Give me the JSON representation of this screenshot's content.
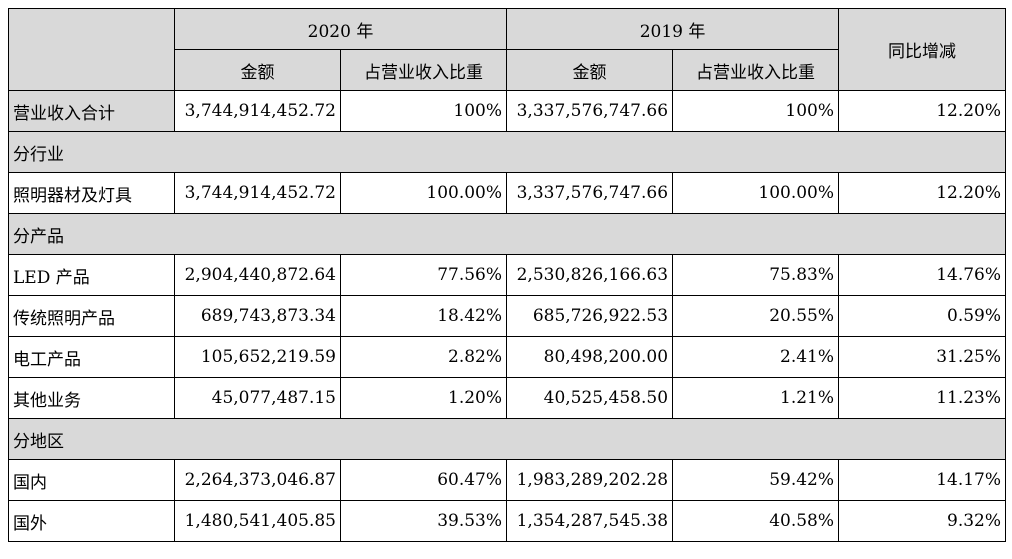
{
  "header": {
    "year_2020": "2020 年",
    "year_2019": "2019 年",
    "yoy_change": "同比增减",
    "amount_2020": "金额",
    "share_2020": "占营业收入比重",
    "amount_2019": "金额",
    "share_2019": "占营业收入比重"
  },
  "total": {
    "label": "营业收入合计",
    "amount_2020": "3,744,914,452.72",
    "share_2020": "100%",
    "amount_2019": "3,337,576,747.66",
    "share_2019": "100%",
    "yoy": "12.20%"
  },
  "sections": {
    "industry": "分行业",
    "product": "分产品",
    "region": "分地区"
  },
  "industry_rows": [
    {
      "label": "照明器材及灯具",
      "amount_2020": "3,744,914,452.72",
      "share_2020": "100.00%",
      "amount_2019": "3,337,576,747.66",
      "share_2019": "100.00%",
      "yoy": "12.20%"
    }
  ],
  "product_rows": [
    {
      "label": "LED 产品",
      "amount_2020": "2,904,440,872.64",
      "share_2020": "77.56%",
      "amount_2019": "2,530,826,166.63",
      "share_2019": "75.83%",
      "yoy": "14.76%"
    },
    {
      "label": "传统照明产品",
      "amount_2020": "689,743,873.34",
      "share_2020": "18.42%",
      "amount_2019": "685,726,922.53",
      "share_2019": "20.55%",
      "yoy": "0.59%"
    },
    {
      "label": "电工产品",
      "amount_2020": "105,652,219.59",
      "share_2020": "2.82%",
      "amount_2019": "80,498,200.00",
      "share_2019": "2.41%",
      "yoy": "31.25%"
    },
    {
      "label": "其他业务",
      "amount_2020": "45,077,487.15",
      "share_2020": "1.20%",
      "amount_2019": "40,525,458.50",
      "share_2019": "1.21%",
      "yoy": "11.23%"
    }
  ],
  "region_rows": [
    {
      "label": "国内",
      "amount_2020": "2,264,373,046.87",
      "share_2020": "60.47%",
      "amount_2019": "1,983,289,202.28",
      "share_2019": "59.42%",
      "yoy": "14.17%"
    },
    {
      "label": "国外",
      "amount_2020": "1,480,541,405.85",
      "share_2020": "39.53%",
      "amount_2019": "1,354,287,545.38",
      "share_2019": "40.58%",
      "yoy": "9.32%"
    }
  ]
}
